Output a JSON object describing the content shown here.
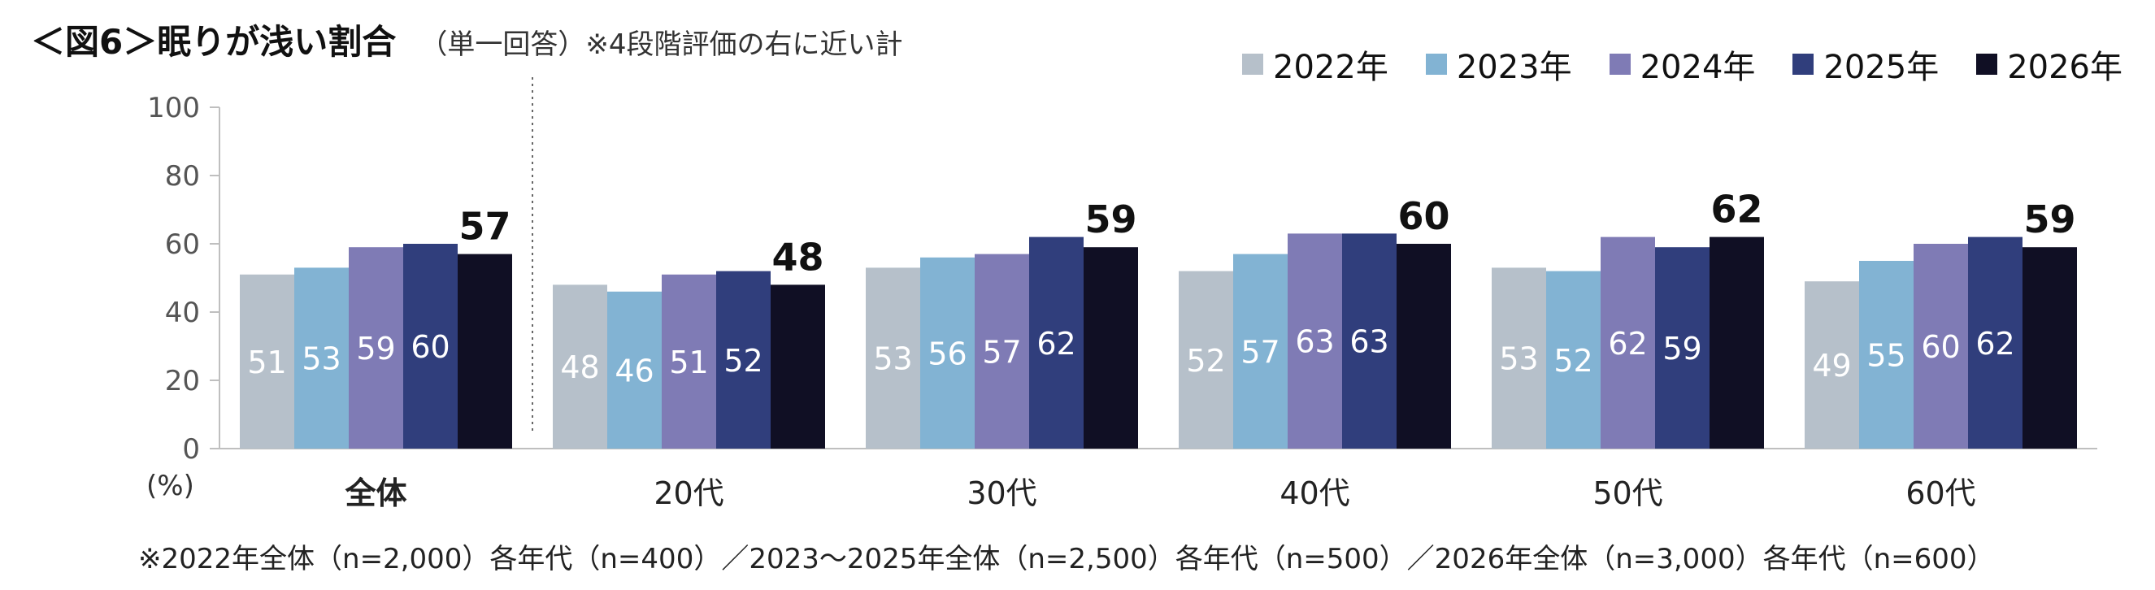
{
  "title": "＜図6＞眠りが浅い割合",
  "subtitle": "（単一回答）※4段階評価の右に近い計",
  "unit": "(%)",
  "footnote": "※2022年全体（n=2,000）各年代（n=400）／2023～2025年全体（n=2,500）各年代（n=500）／2026年全体（n=3,000）各年代（n=600）",
  "chart_data": {
    "type": "bar",
    "title": "＜図6＞眠りが浅い割合",
    "xlabel": "",
    "ylabel": "(%)",
    "ylim": [
      0,
      100
    ],
    "yticks": [
      0,
      20,
      40,
      60,
      80,
      100
    ],
    "grid": false,
    "legend": "top-right",
    "categories": [
      "全体",
      "20代",
      "30代",
      "40代",
      "50代",
      "60代"
    ],
    "series": [
      {
        "name": "2022年",
        "color": "#b6c0ca",
        "values": [
          51,
          48,
          53,
          52,
          53,
          49
        ]
      },
      {
        "name": "2023年",
        "color": "#82b3d3",
        "values": [
          53,
          46,
          56,
          57,
          52,
          55
        ]
      },
      {
        "name": "2024年",
        "color": "#7f7bb5",
        "values": [
          59,
          51,
          57,
          63,
          62,
          60
        ]
      },
      {
        "name": "2025年",
        "color": "#303e7c",
        "values": [
          60,
          52,
          62,
          63,
          59,
          62
        ]
      },
      {
        "name": "2026年",
        "color": "#100f24",
        "values": [
          57,
          48,
          59,
          60,
          62,
          59
        ]
      }
    ]
  }
}
